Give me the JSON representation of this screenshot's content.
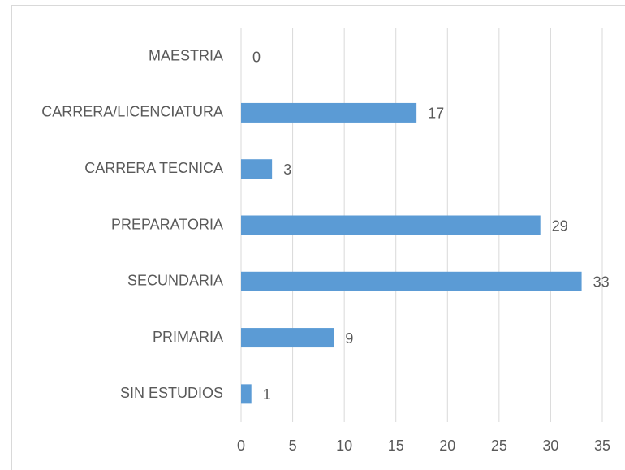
{
  "chart_data": {
    "type": "bar",
    "orientation": "horizontal",
    "categories": [
      "MAESTRIA",
      "CARRERA/LICENCIATURA",
      "CARRERA TECNICA",
      "PREPARATORIA",
      "SECUNDARIA",
      "PRIMARIA",
      "SIN ESTUDIOS"
    ],
    "values": [
      0,
      17,
      3,
      29,
      33,
      9,
      1
    ],
    "color": "#5b9bd5",
    "xlim": [
      0,
      35
    ],
    "xticks": [
      0,
      5,
      10,
      15,
      20,
      25,
      30,
      35
    ],
    "grid": true,
    "data_labels": true
  }
}
